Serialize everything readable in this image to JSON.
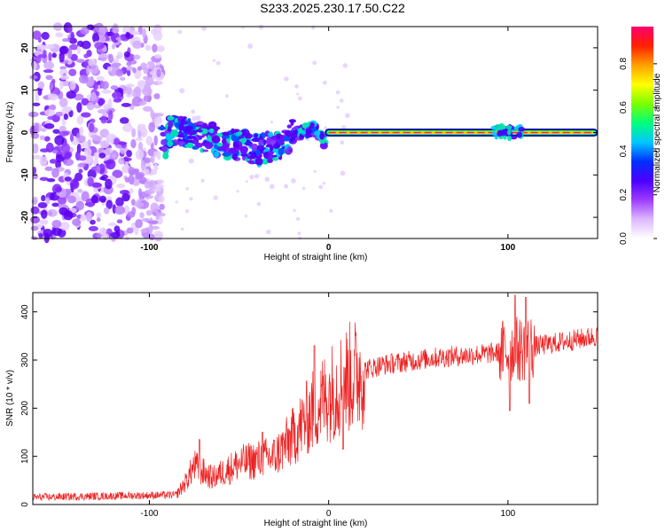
{
  "title": "S233.2025.230.17.50.C22",
  "chart_data": [
    {
      "type": "heatmap",
      "xlabel": "Height of straight line (km)",
      "ylabel": "Frequency (Hz)",
      "xlim": [
        -165,
        150
      ],
      "ylim": [
        -25,
        25
      ],
      "xticks": [
        {
          "value": -100,
          "label": "-100"
        },
        {
          "value": 0,
          "label": "0"
        },
        {
          "value": 100,
          "label": "100"
        }
      ],
      "yticks": [
        {
          "value": 20,
          "label": "20"
        },
        {
          "value": 10,
          "label": "10"
        },
        {
          "value": 0,
          "label": "0"
        },
        {
          "value": -10,
          "label": "-10"
        },
        {
          "value": -20,
          "label": "-20"
        }
      ],
      "colorbar": {
        "label": "Normalized spectral amplitude",
        "range": [
          0.0,
          0.97
        ],
        "ticks": [
          {
            "value": 0.0,
            "label": "0.0"
          },
          {
            "value": 0.2,
            "label": "0.2"
          },
          {
            "value": 0.4,
            "label": "0.4"
          },
          {
            "value": 0.6,
            "label": "0.6"
          },
          {
            "value": 0.8,
            "label": "0.8"
          }
        ],
        "colors": [
          "#ffffff",
          "#ddb8ff",
          "#9c3cff",
          "#4a00ff",
          "#0030ff",
          "#00c8ff",
          "#00ff7a",
          "#7cff00",
          "#ffff00",
          "#ffa000",
          "#ff2000",
          "#ff0070"
        ]
      },
      "features": {
        "noise_region_x": [
          -165,
          -93
        ],
        "scatter_region_x": [
          -93,
          -2
        ],
        "scatter_freq_path": [
          [
            -90,
            0
          ],
          [
            -80,
            0
          ],
          [
            -70,
            -1
          ],
          [
            -60,
            -2
          ],
          [
            -50,
            -3
          ],
          [
            -40,
            -4
          ],
          [
            -30,
            -3
          ],
          [
            -22,
            -1
          ],
          [
            -16,
            0
          ],
          [
            -12,
            0.8
          ],
          [
            -8,
            0.8
          ],
          [
            -5,
            -0.5
          ],
          [
            -2,
            -2
          ]
        ],
        "line_region_x": [
          0,
          148
        ],
        "line_freq": 0,
        "burst_region_x": [
          92,
          108
        ]
      }
    },
    {
      "type": "line",
      "xlabel": "Height of straight line (km)",
      "ylabel": "SNR (10 * v/v)",
      "xlim": [
        -165,
        150
      ],
      "ylim": [
        0,
        440
      ],
      "line_color": "#ee2020",
      "xticks": [
        {
          "value": -100,
          "label": "-100"
        },
        {
          "value": 0,
          "label": "0"
        },
        {
          "value": 100,
          "label": "100"
        }
      ],
      "yticks": [
        {
          "value": 0,
          "label": "0"
        },
        {
          "value": 100,
          "label": "100"
        },
        {
          "value": 200,
          "label": "200"
        },
        {
          "value": 300,
          "label": "300"
        },
        {
          "value": 400,
          "label": "400"
        }
      ],
      "trend": [
        [
          -165,
          15
        ],
        [
          -85,
          20
        ],
        [
          -80,
          45
        ],
        [
          -75,
          80
        ],
        [
          -65,
          55
        ],
        [
          -50,
          85
        ],
        [
          -30,
          100
        ],
        [
          -20,
          140
        ],
        [
          -10,
          190
        ],
        [
          0,
          230
        ],
        [
          10,
          260
        ],
        [
          20,
          280
        ],
        [
          30,
          290
        ],
        [
          60,
          305
        ],
        [
          95,
          315
        ],
        [
          110,
          325
        ],
        [
          150,
          350
        ]
      ],
      "spikes": [
        {
          "x": -72,
          "y": 135
        },
        {
          "x": -37,
          "y": 150
        },
        {
          "x": -8,
          "y": 330
        },
        {
          "x": 8,
          "y": 115
        },
        {
          "x": 101,
          "y": 195
        },
        {
          "x": 104,
          "y": 435
        },
        {
          "x": 110,
          "y": 430
        },
        {
          "x": 112,
          "y": 210
        }
      ]
    }
  ]
}
